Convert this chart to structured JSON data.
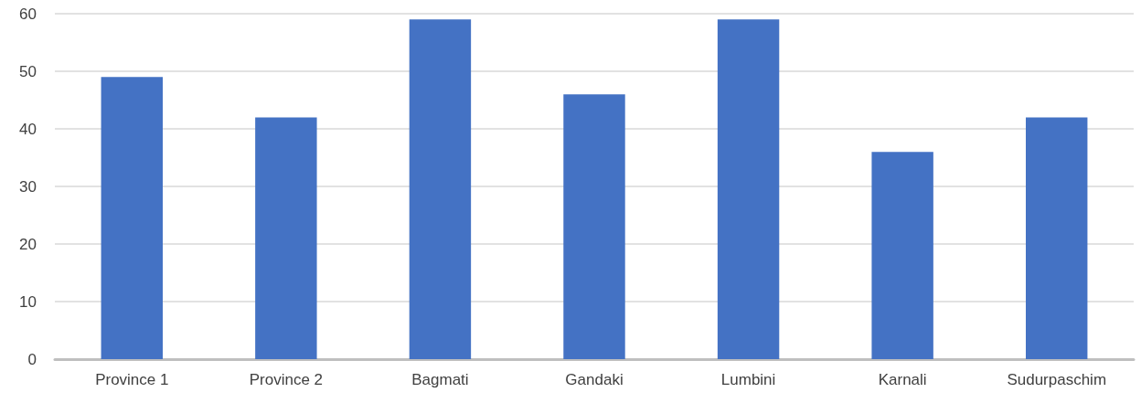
{
  "chart_data": {
    "type": "bar",
    "categories": [
      "Province 1",
      "Province 2",
      "Bagmati",
      "Gandaki",
      "Lumbini",
      "Karnali",
      "Sudurpaschim"
    ],
    "values": [
      49,
      42,
      59,
      46,
      59,
      36,
      42
    ],
    "color": "#4472c4",
    "ylim": [
      0,
      60
    ],
    "yticks": [
      0,
      10,
      20,
      30,
      40,
      50,
      60
    ],
    "grid": "y"
  }
}
